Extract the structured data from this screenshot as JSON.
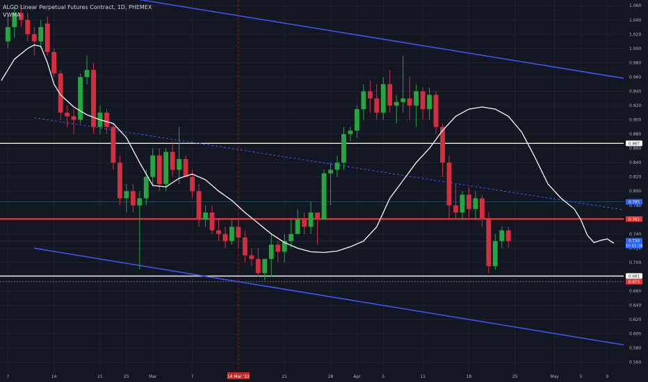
{
  "legend": {
    "title": "ALGO Linear Perpetual Futures Contract, 1D, PHEMEX",
    "indicator": "VWMA"
  },
  "colors": {
    "background": "#131722",
    "up": "#26a641",
    "down": "#d32f3f",
    "vwma": "#ffffff",
    "channel": "#3d5afe",
    "resistance": "#e53935",
    "support": "#ffffff",
    "grid": "#1e2230"
  },
  "chart_data": {
    "type": "candlestick",
    "ylim": [
      0.548,
      1.068
    ],
    "y_ticks": [
      "1.060",
      "1.040",
      "1.020",
      "1.000",
      "0.980",
      "0.960",
      "0.940",
      "0.920",
      "0.900",
      "0.880",
      "0.860",
      "0.840",
      "0.820",
      "0.800",
      "0.780",
      "0.760",
      "0.740",
      "0.720",
      "0.700",
      "0.680",
      "0.660",
      "0.640",
      "0.620",
      "0.600",
      "0.580",
      "0.560"
    ],
    "x_ticks": [
      {
        "label": "7",
        "day": 0
      },
      {
        "label": "14",
        "day": 7
      },
      {
        "label": "21",
        "day": 14
      },
      {
        "label": "25",
        "day": 18
      },
      {
        "label": "Mar",
        "day": 22
      },
      {
        "label": "7",
        "day": 28
      },
      {
        "label": "14 Mar '22",
        "day": 35,
        "highlight": true
      },
      {
        "label": "21",
        "day": 42
      },
      {
        "label": "28",
        "day": 49
      },
      {
        "label": "Apr",
        "day": 53
      },
      {
        "label": "5",
        "day": 57
      },
      {
        "label": "11",
        "day": 63
      },
      {
        "label": "18",
        "day": 70
      },
      {
        "label": "25",
        "day": 77
      },
      {
        "label": "May",
        "day": 83
      },
      {
        "label": "5",
        "day": 87
      },
      {
        "label": "9",
        "day": 91
      }
    ],
    "x_range": [
      -1.2,
      93.5
    ],
    "candles": [
      [
        1.01,
        1.045,
        1.0,
        1.03
      ],
      [
        1.03,
        1.06,
        1.015,
        1.05
      ],
      [
        1.05,
        1.062,
        1.03,
        1.04
      ],
      [
        1.04,
        1.05,
        1.01,
        1.02
      ],
      [
        1.02,
        1.03,
        0.99,
        1.01
      ],
      [
        1.01,
        1.04,
        1.0,
        1.03
      ],
      [
        1.035,
        1.045,
        0.99,
        0.995
      ],
      [
        0.995,
        1.0,
        0.96,
        0.965
      ],
      [
        0.965,
        0.97,
        0.9,
        0.91
      ],
      [
        0.91,
        0.92,
        0.89,
        0.905
      ],
      [
        0.905,
        0.915,
        0.88,
        0.9
      ],
      [
        0.9,
        0.965,
        0.895,
        0.96
      ],
      [
        0.96,
        0.99,
        0.95,
        0.97
      ],
      [
        0.97,
        0.98,
        0.88,
        0.89
      ],
      [
        0.89,
        0.92,
        0.88,
        0.91
      ],
      [
        0.91,
        0.915,
        0.88,
        0.89
      ],
      [
        0.89,
        0.895,
        0.83,
        0.84
      ],
      [
        0.84,
        0.85,
        0.78,
        0.79
      ],
      [
        0.79,
        0.81,
        0.77,
        0.8
      ],
      [
        0.8,
        0.81,
        0.77,
        0.78
      ],
      [
        0.78,
        0.8,
        0.69,
        0.79
      ],
      [
        0.79,
        0.83,
        0.78,
        0.82
      ],
      [
        0.82,
        0.86,
        0.81,
        0.85
      ],
      [
        0.85,
        0.86,
        0.8,
        0.81
      ],
      [
        0.81,
        0.86,
        0.8,
        0.855
      ],
      [
        0.855,
        0.87,
        0.82,
        0.83
      ],
      [
        0.83,
        0.89,
        0.81,
        0.845
      ],
      [
        0.845,
        0.85,
        0.82,
        0.82
      ],
      [
        0.82,
        0.83,
        0.79,
        0.8
      ],
      [
        0.8,
        0.81,
        0.75,
        0.76
      ],
      [
        0.76,
        0.78,
        0.75,
        0.77
      ],
      [
        0.77,
        0.78,
        0.74,
        0.745
      ],
      [
        0.745,
        0.76,
        0.73,
        0.74
      ],
      [
        0.74,
        0.75,
        0.72,
        0.73
      ],
      [
        0.73,
        0.76,
        0.725,
        0.75
      ],
      [
        0.75,
        0.76,
        0.72,
        0.735
      ],
      [
        0.735,
        0.745,
        0.7,
        0.71
      ],
      [
        0.71,
        0.72,
        0.695,
        0.705
      ],
      [
        0.705,
        0.72,
        0.68,
        0.685
      ],
      [
        0.685,
        0.7,
        0.675,
        0.705
      ],
      [
        0.705,
        0.74,
        0.68,
        0.725
      ],
      [
        0.725,
        0.73,
        0.7,
        0.715
      ],
      [
        0.715,
        0.74,
        0.7,
        0.73
      ],
      [
        0.73,
        0.76,
        0.72,
        0.74
      ],
      [
        0.74,
        0.775,
        0.74,
        0.76
      ],
      [
        0.76,
        0.77,
        0.74,
        0.75
      ],
      [
        0.75,
        0.785,
        0.74,
        0.77
      ],
      [
        0.77,
        0.77,
        0.725,
        0.76
      ],
      [
        0.76,
        0.83,
        0.76,
        0.825
      ],
      [
        0.825,
        0.84,
        0.78,
        0.83
      ],
      [
        0.83,
        0.85,
        0.82,
        0.84
      ],
      [
        0.84,
        0.89,
        0.83,
        0.88
      ],
      [
        0.88,
        0.89,
        0.87,
        0.885
      ],
      [
        0.885,
        0.92,
        0.875,
        0.915
      ],
      [
        0.915,
        0.95,
        0.9,
        0.94
      ],
      [
        0.94,
        0.955,
        0.91,
        0.93
      ],
      [
        0.93,
        0.95,
        0.9,
        0.91
      ],
      [
        0.91,
        0.96,
        0.9,
        0.95
      ],
      [
        0.95,
        0.97,
        0.91,
        0.92
      ],
      [
        0.92,
        0.935,
        0.895,
        0.925
      ],
      [
        0.925,
        0.99,
        0.91,
        0.93
      ],
      [
        0.93,
        0.96,
        0.9,
        0.92
      ],
      [
        0.92,
        0.95,
        0.89,
        0.94
      ],
      [
        0.94,
        0.945,
        0.9,
        0.915
      ],
      [
        0.915,
        0.945,
        0.9,
        0.935
      ],
      [
        0.935,
        0.94,
        0.88,
        0.89
      ],
      [
        0.89,
        0.895,
        0.82,
        0.84
      ],
      [
        0.84,
        0.85,
        0.76,
        0.78
      ],
      [
        0.78,
        0.81,
        0.76,
        0.77
      ],
      [
        0.77,
        0.8,
        0.76,
        0.795
      ],
      [
        0.795,
        0.805,
        0.76,
        0.775
      ],
      [
        0.775,
        0.8,
        0.76,
        0.79
      ],
      [
        0.79,
        0.795,
        0.75,
        0.76
      ],
      [
        0.76,
        0.77,
        0.685,
        0.695
      ],
      [
        0.695,
        0.74,
        0.69,
        0.73
      ],
      [
        0.73,
        0.75,
        0.72,
        0.745
      ],
      [
        0.745,
        0.75,
        0.72,
        0.73
      ]
    ],
    "vwma": [
      [
        -1,
        0.955
      ],
      [
        1,
        0.985
      ],
      [
        3,
        1.0
      ],
      [
        4,
        1.005
      ],
      [
        5,
        1.003
      ],
      [
        6,
        0.98
      ],
      [
        7,
        0.95
      ],
      [
        8,
        0.935
      ],
      [
        10,
        0.918
      ],
      [
        12,
        0.907
      ],
      [
        14,
        0.9
      ],
      [
        16,
        0.895
      ],
      [
        18,
        0.875
      ],
      [
        20,
        0.84
      ],
      [
        22,
        0.808
      ],
      [
        24,
        0.806
      ],
      [
        26,
        0.818
      ],
      [
        28,
        0.824
      ],
      [
        30,
        0.816
      ],
      [
        32,
        0.8
      ],
      [
        34,
        0.787
      ],
      [
        36,
        0.77
      ],
      [
        38,
        0.755
      ],
      [
        40,
        0.74
      ],
      [
        42,
        0.728
      ],
      [
        44,
        0.72
      ],
      [
        46,
        0.715
      ],
      [
        48,
        0.714
      ],
      [
        50,
        0.716
      ],
      [
        52,
        0.722
      ],
      [
        54,
        0.73
      ],
      [
        56,
        0.75
      ],
      [
        58,
        0.79
      ],
      [
        60,
        0.815
      ],
      [
        62,
        0.84
      ],
      [
        64,
        0.86
      ],
      [
        66,
        0.885
      ],
      [
        68,
        0.905
      ],
      [
        70,
        0.915
      ],
      [
        72,
        0.918
      ],
      [
        74,
        0.915
      ],
      [
        76,
        0.905
      ],
      [
        78,
        0.883
      ],
      [
        80,
        0.848
      ],
      [
        82,
        0.81
      ],
      [
        84,
        0.79
      ],
      [
        86,
        0.775
      ],
      [
        87,
        0.76
      ],
      [
        88,
        0.738
      ],
      [
        89,
        0.728
      ],
      [
        90,
        0.731
      ],
      [
        91,
        0.733
      ],
      [
        92,
        0.727
      ]
    ],
    "channel_upper": {
      "p1": [
        9,
        1.085
      ],
      "p2": [
        119,
        0.92
      ]
    },
    "channel_lower": {
      "p1": [
        4,
        0.72
      ],
      "p2": [
        115,
        0.552
      ]
    },
    "midline": {
      "p1": [
        4,
        0.903
      ],
      "p2": [
        119,
        0.737
      ]
    },
    "resistance": 0.761,
    "support_levels": [
      0.867,
      0.681
    ],
    "dotted_levels": [
      0.673
    ],
    "price_line": 0.73,
    "faint_level": 0.785,
    "vertical_marker_day": 49,
    "price_tags": [
      {
        "value": 0.867,
        "label": "0.867",
        "bg": "#ffffff",
        "fg": "#131722"
      },
      {
        "value": 0.785,
        "label": "0.785",
        "bg": "#2962ff",
        "fg": "#ffffff"
      },
      {
        "value": 0.761,
        "label": "0.761",
        "bg": "#e53935",
        "fg": "#ffffff"
      },
      {
        "value": 0.73,
        "label": "0.730",
        "label2": "10:11:16",
        "bg": "#2962ff",
        "fg": "#ffffff"
      },
      {
        "value": 0.681,
        "label": "0.681",
        "bg": "#ffffff",
        "fg": "#131722"
      },
      {
        "value": 0.673,
        "label": "0.673",
        "bg": "#e53935",
        "fg": "#ffffff"
      }
    ]
  }
}
